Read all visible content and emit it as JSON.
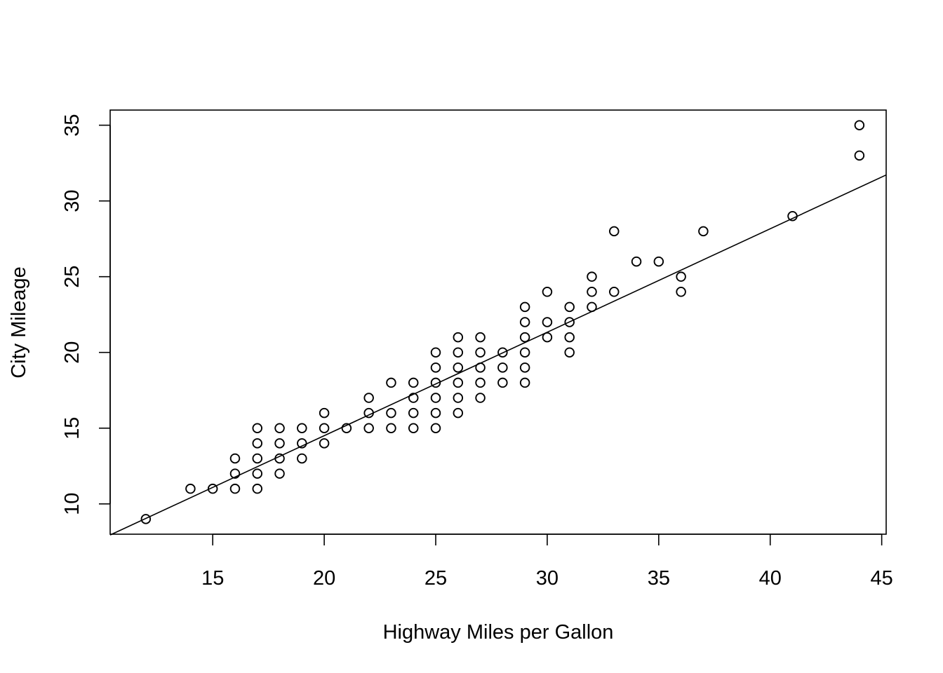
{
  "chart_data": {
    "type": "scatter",
    "title": "",
    "xlabel": "Highway Miles per Gallon",
    "ylabel": "City Mileage",
    "xlim": [
      10.4,
      45.2
    ],
    "ylim": [
      8.0,
      36.0
    ],
    "xticks": [
      15,
      20,
      25,
      30,
      35,
      40,
      45
    ],
    "yticks": [
      10,
      15,
      20,
      25,
      30,
      35
    ],
    "grid": false,
    "legend": "none",
    "colors": {
      "marker": "#000000",
      "line": "#000000",
      "background": "#ffffff"
    },
    "points": [
      [
        12,
        9
      ],
      [
        14,
        11
      ],
      [
        15,
        11
      ],
      [
        16,
        11
      ],
      [
        16,
        12
      ],
      [
        16,
        13
      ],
      [
        17,
        11
      ],
      [
        17,
        12
      ],
      [
        17,
        13
      ],
      [
        17,
        14
      ],
      [
        17,
        15
      ],
      [
        18,
        12
      ],
      [
        18,
        13
      ],
      [
        18,
        14
      ],
      [
        18,
        15
      ],
      [
        19,
        13
      ],
      [
        19,
        14
      ],
      [
        19,
        15
      ],
      [
        20,
        14
      ],
      [
        20,
        15
      ],
      [
        20,
        16
      ],
      [
        21,
        15
      ],
      [
        22,
        15
      ],
      [
        22,
        16
      ],
      [
        22,
        17
      ],
      [
        23,
        15
      ],
      [
        23,
        16
      ],
      [
        23,
        18
      ],
      [
        24,
        15
      ],
      [
        24,
        16
      ],
      [
        24,
        17
      ],
      [
        24,
        18
      ],
      [
        25,
        15
      ],
      [
        25,
        16
      ],
      [
        25,
        17
      ],
      [
        25,
        18
      ],
      [
        25,
        19
      ],
      [
        25,
        20
      ],
      [
        26,
        16
      ],
      [
        26,
        17
      ],
      [
        26,
        18
      ],
      [
        26,
        19
      ],
      [
        26,
        20
      ],
      [
        26,
        21
      ],
      [
        27,
        17
      ],
      [
        27,
        18
      ],
      [
        27,
        19
      ],
      [
        27,
        20
      ],
      [
        27,
        21
      ],
      [
        28,
        18
      ],
      [
        28,
        19
      ],
      [
        28,
        20
      ],
      [
        29,
        18
      ],
      [
        29,
        19
      ],
      [
        29,
        20
      ],
      [
        29,
        21
      ],
      [
        29,
        22
      ],
      [
        29,
        23
      ],
      [
        30,
        21
      ],
      [
        30,
        22
      ],
      [
        30,
        24
      ],
      [
        31,
        20
      ],
      [
        31,
        21
      ],
      [
        31,
        22
      ],
      [
        31,
        23
      ],
      [
        32,
        23
      ],
      [
        32,
        24
      ],
      [
        32,
        25
      ],
      [
        33,
        24
      ],
      [
        33,
        28
      ],
      [
        34,
        26
      ],
      [
        35,
        26
      ],
      [
        36,
        24
      ],
      [
        36,
        25
      ],
      [
        37,
        28
      ],
      [
        41,
        29
      ],
      [
        44,
        33
      ],
      [
        44,
        35
      ]
    ],
    "fit_line": {
      "type": "linear",
      "intercept": 0.844,
      "slope": 0.683
    }
  }
}
